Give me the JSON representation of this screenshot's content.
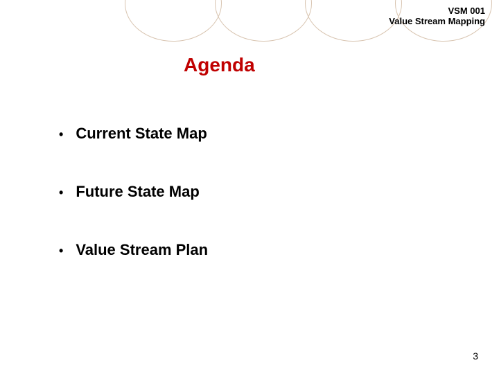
{
  "header": {
    "code": "VSM 001",
    "subtitle": "Value Stream Mapping"
  },
  "title": "Agenda",
  "title_color": "#c00000",
  "bullets": {
    "items": [
      {
        "label": "Current State Map"
      },
      {
        "label": "Future State Map"
      },
      {
        "label": "Value Stream Plan"
      }
    ]
  },
  "page_number": "3",
  "style": {
    "background_color": "#ffffff",
    "title_fontsize": 28,
    "title_fontweight": "bold",
    "bullet_fontsize": 22,
    "bullet_fontweight": "bold",
    "header_fontsize": 13,
    "circle_border_color": "#d8c4b0",
    "page_number_fontsize": 14,
    "font_family": "Arial"
  }
}
